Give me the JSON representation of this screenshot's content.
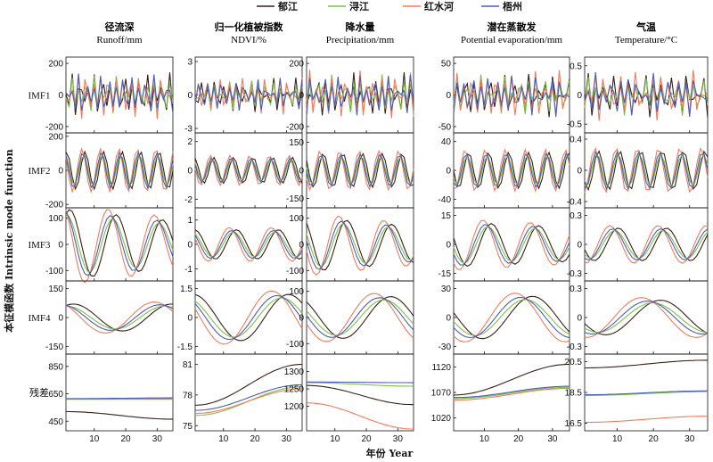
{
  "legend": [
    {
      "name": "郁江",
      "color": "#3a1f14"
    },
    {
      "name": "浔江",
      "color": "#7fbf4a"
    },
    {
      "name": "红水河",
      "color": "#f07b5c"
    },
    {
      "name": "梧州",
      "color": "#4a5fb5"
    }
  ],
  "columns": [
    {
      "title": "径流深",
      "subtitle": "Runoff/mm"
    },
    {
      "title": "归一化植被指数",
      "subtitle": "NDVI/%"
    },
    {
      "title": "降水量",
      "subtitle": "Precipitation/mm"
    },
    {
      "title": "潜在蒸散发",
      "subtitle": "Potential evaporation/mm"
    },
    {
      "title": "气温",
      "subtitle": "Temperature/°C"
    }
  ],
  "rows": [
    "IMF1",
    "IMF2",
    "IMF3",
    "IMF4",
    "残差"
  ],
  "y_axis_label": "本征模函数 Intrinsic mode function",
  "x_axis_label": "年份 Year",
  "chart_data": {
    "type": "line",
    "x_range": [
      1,
      35
    ],
    "x_ticks": [
      10,
      20,
      30
    ],
    "panels": [
      [
        {
          "ylim": [
            -240,
            240
          ],
          "yticks": [
            -200,
            0,
            200
          ],
          "amp": 100,
          "freq": 0.42,
          "decay": 0
        },
        {
          "ylim": [
            -220,
            220
          ],
          "yticks": [
            -200,
            0,
            200
          ],
          "amp": 110,
          "freq": 0.17,
          "decay": 0
        },
        {
          "ylim": [
            -140,
            140
          ],
          "yticks": [
            -100,
            0,
            100
          ],
          "amp": 90,
          "freq": 0.068,
          "decay": 0.5
        },
        {
          "ylim": [
            -190,
            190
          ],
          "yticks": [
            -150,
            0,
            150
          ],
          "amp": 70,
          "freq": 0.032,
          "decay": 0
        },
        {
          "ylim": [
            380,
            940
          ],
          "yticks": [
            450,
            650,
            850
          ],
          "resid": [
            [
              520,
              465
            ],
            [
              610,
              610
            ],
            [
              612,
              615
            ],
            [
              615,
              620
            ]
          ]
        }
      ],
      [
        {
          "ylim": [
            -3.4,
            3.4
          ],
          "yticks": [
            -3,
            0,
            3
          ],
          "amp": 1.1,
          "freq": 0.43,
          "decay": 0
        },
        {
          "ylim": [
            -2.6,
            2.6
          ],
          "yticks": [
            -2,
            0,
            2
          ],
          "amp": 0.9,
          "freq": 0.16,
          "decay": 0
        },
        {
          "ylim": [
            -1.5,
            1.5
          ],
          "yticks": [
            -1,
            0,
            1
          ],
          "amp": 0.6,
          "freq": 0.075,
          "decay": 0
        },
        {
          "ylim": [
            -1.9,
            1.9
          ],
          "yticks": [
            -1.5,
            0,
            1.5
          ],
          "amp": 1.2,
          "freq": 0.033,
          "decay": 0
        },
        {
          "ylim": [
            74.5,
            82
          ],
          "yticks": [
            75,
            78,
            81
          ],
          "resid": [
            [
              77,
              81
            ],
            [
              76,
              78.8
            ],
            [
              76.2,
              78.6
            ],
            [
              76.5,
              79
            ]
          ]
        }
      ],
      [
        {
          "ylim": [
            -240,
            240
          ],
          "yticks": [
            -200,
            0,
            200
          ],
          "amp": 100,
          "freq": 0.44,
          "decay": 0
        },
        {
          "ylim": [
            -200,
            200
          ],
          "yticks": [
            -150,
            0,
            150
          ],
          "amp": 90,
          "freq": 0.16,
          "decay": 0
        },
        {
          "ylim": [
            -140,
            140
          ],
          "yticks": [
            -100,
            0,
            100
          ],
          "amp": 70,
          "freq": 0.07,
          "decay": 0.5
        },
        {
          "ylim": [
            -140,
            140
          ],
          "yticks": [
            -100,
            0,
            100
          ],
          "amp": 80,
          "freq": 0.033,
          "decay": 0
        },
        {
          "ylim": [
            1130,
            1350
          ],
          "yticks": [
            1200,
            1250,
            1300
          ],
          "resid": [
            [
              1260,
              1205
            ],
            [
              1268,
              1258
            ],
            [
              1210,
              1135
            ],
            [
              1270,
              1268
            ]
          ]
        }
      ],
      [
        {
          "ylim": [
            -60,
            60
          ],
          "yticks": [
            -50,
            0,
            50
          ],
          "amp": 25,
          "freq": 0.43,
          "decay": 0
        },
        {
          "ylim": [
            -52,
            52
          ],
          "yticks": [
            -40,
            0,
            40
          ],
          "amp": 25,
          "freq": 0.17,
          "decay": 0
        },
        {
          "ylim": [
            -19,
            19
          ],
          "yticks": [
            -15,
            0,
            15
          ],
          "amp": 9,
          "freq": 0.072,
          "decay": 0.3
        },
        {
          "ylim": [
            -38,
            38
          ],
          "yticks": [
            -30,
            0,
            30
          ],
          "amp": 22,
          "freq": 0.034,
          "decay": 0
        },
        {
          "ylim": [
            995,
            1145
          ],
          "yticks": [
            1020,
            1070,
            1120
          ],
          "resid": [
            [
              1065,
              1125
            ],
            [
              1058,
              1080
            ],
            [
              1055,
              1078
            ],
            [
              1060,
              1082
            ]
          ]
        }
      ],
      [
        {
          "ylim": [
            -0.65,
            0.65
          ],
          "yticks": [
            -0.5,
            0,
            0.5
          ],
          "amp": 0.28,
          "freq": 0.44,
          "decay": 0
        },
        {
          "ylim": [
            -0.48,
            0.48
          ],
          "yticks": [
            -0.4,
            0,
            0.4
          ],
          "amp": 0.25,
          "freq": 0.17,
          "decay": 0
        },
        {
          "ylim": [
            -0.38,
            0.38
          ],
          "yticks": [
            -0.3,
            0,
            0.3
          ],
          "amp": 0.17,
          "freq": 0.075,
          "decay": 0
        },
        {
          "ylim": [
            -0.38,
            0.38
          ],
          "yticks": [
            -0.3,
            0,
            0.3
          ],
          "amp": 0.18,
          "freq": 0.033,
          "decay": 0
        },
        {
          "ylim": [
            16,
            21
          ],
          "yticks": [
            16.5,
            18.5,
            20.5
          ],
          "resid": [
            [
              20.1,
              20.6
            ],
            [
              18.3,
              18.55
            ],
            [
              16.55,
              16.95
            ],
            [
              18.35,
              18.6
            ]
          ]
        }
      ]
    ]
  }
}
